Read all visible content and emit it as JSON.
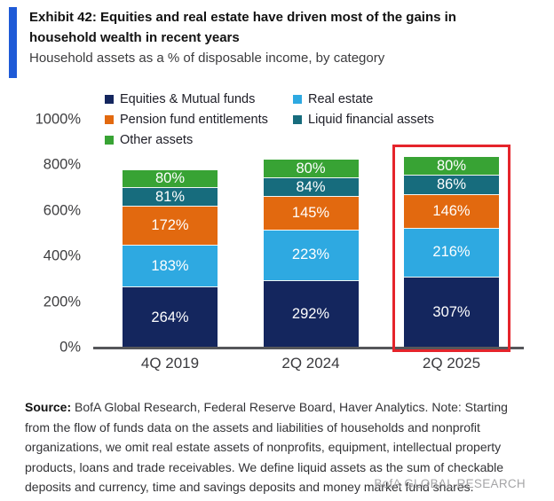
{
  "accent_color": "#1e5ad7",
  "chart_data": {
    "type": "bar",
    "stacked": true,
    "title": "Exhibit 42: Equities and real estate have driven most of the gains in household wealth in recent years",
    "subtitle": "Household assets as a % of disposable income, by category",
    "categories": [
      "4Q 2019",
      "2Q 2024",
      "2Q 2025"
    ],
    "series": [
      {
        "name": "Equities & Mutual funds",
        "color": "#14265e",
        "values": [
          264,
          292,
          307
        ]
      },
      {
        "name": "Real estate",
        "color": "#2ea9e1",
        "values": [
          183,
          223,
          216
        ]
      },
      {
        "name": "Pension fund entitlements",
        "color": "#e2690f",
        "values": [
          172,
          145,
          146
        ]
      },
      {
        "name": "Liquid financial assets",
        "color": "#176c7d",
        "values": [
          81,
          84,
          86
        ]
      },
      {
        "name": "Other assets",
        "color": "#38a334",
        "values": [
          80,
          80,
          80
        ]
      }
    ],
    "value_suffix": "%",
    "ylim": [
      0,
      1000
    ],
    "yticks": [
      0,
      200,
      400,
      600,
      800,
      1000
    ],
    "ytick_suffix": "%",
    "grid": false,
    "legend_position": "top",
    "highlight": {
      "category": "2Q 2025",
      "color": "#e5242b"
    }
  },
  "footer": {
    "source_label": "Source:",
    "source_text": " BofA Global Research, Federal Reserve Board, Haver Analytics. Note: Starting from the flow of funds data on the assets and liabilities of households and nonprofit organizations, we omit real estate assets of nonprofits, equipment, intellectual property products, loans and trade receivables. We define liquid assets as the sum of checkable deposits and currency, time and savings deposits and money market fund shares.",
    "brand": "BofA GLOBAL RESEARCH"
  }
}
